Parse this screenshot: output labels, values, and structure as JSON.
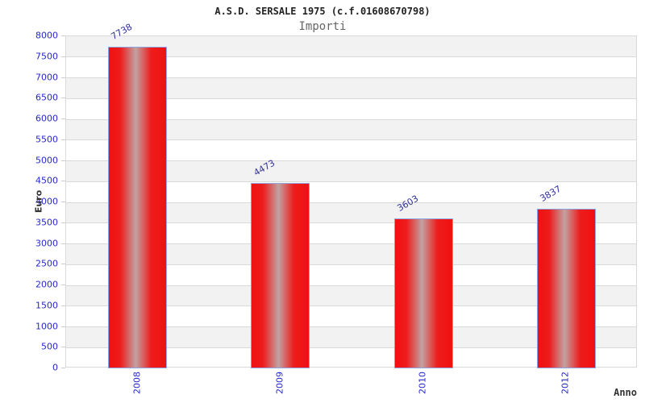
{
  "chart_data": {
    "type": "bar",
    "title": "A.S.D. SERSALE 1975 (c.f.01608670798)",
    "subtitle": "Importi",
    "xlabel": "Anno",
    "ylabel": "Euro",
    "categories": [
      "2008",
      "2009",
      "2010",
      "2012"
    ],
    "values": [
      7738,
      4473,
      3603,
      3837
    ],
    "ylim": [
      0,
      8000
    ],
    "ytick_step": 500,
    "grid": true,
    "legend": "none",
    "band_fill": "alternating horizontal 500-unit bands",
    "colors": {
      "bar_red": "#f01111",
      "bar_highlight": "#c2a2a2",
      "bar_border": "#8ba7e3",
      "tick_label_blue": "#2727cf",
      "value_label_navy": "#31319c",
      "band_gray": "#f2f2f2",
      "band_white": "#ffffff",
      "grid_line": "#d9d9d9",
      "title_color": "#222222",
      "subtitle_color": "#666666",
      "axis_title_color": "#333333"
    }
  }
}
